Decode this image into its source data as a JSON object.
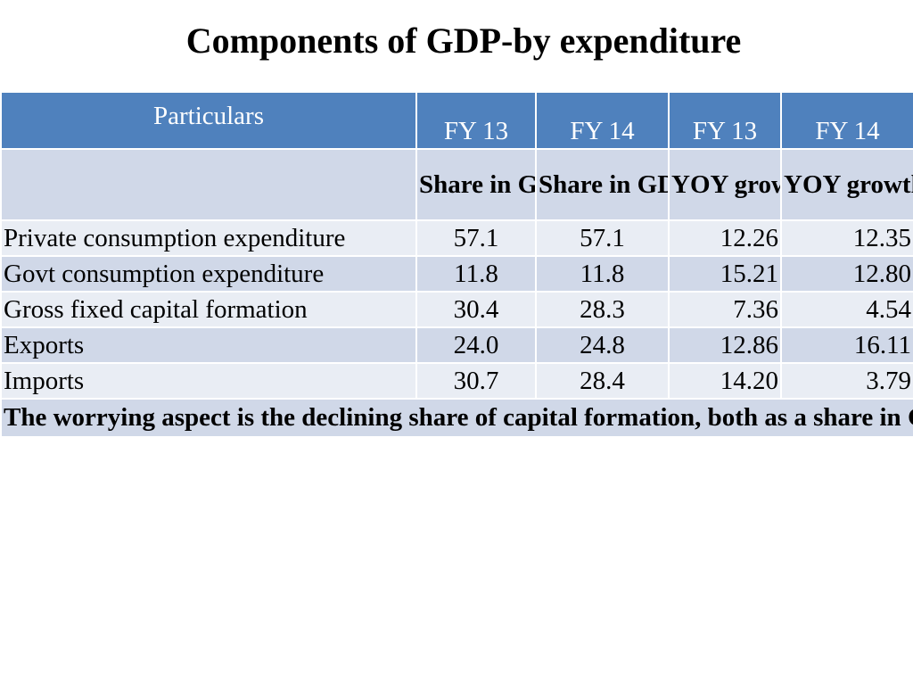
{
  "title": "Components of GDP-by expenditure",
  "table": {
    "header_row1": [
      "Particulars",
      "FY 13",
      "FY 14",
      "FY 13",
      "FY 14"
    ],
    "header_row2": [
      "",
      "Share in GDP",
      "Share in GDP",
      "YOY growth",
      "YOY growth"
    ],
    "rows": [
      [
        "Private consumption expenditure",
        "57.1",
        "57.1",
        "12.26",
        "12.35"
      ],
      [
        "Govt consumption expenditure",
        "11.8",
        "11.8",
        "15.21",
        "12.80"
      ],
      [
        "Gross fixed capital formation",
        "30.4",
        "28.3",
        "7.36",
        "4.54"
      ],
      [
        "Exports",
        "24.0",
        "24.8",
        "12.86",
        "16.11"
      ],
      [
        "Imports",
        "30.7",
        "28.4",
        "14.20",
        "3.79"
      ]
    ],
    "note": "The worrying aspect is the declining share of capital formation, both as a share in GDP and in growth terms. Govt expenditure alos declined, which is a reason for slow GDP growth. This also proves that fiscal deficit was managed by expenditure compression rather than revenue maximization. Low capital formation ot GDP shows policy paralysis"
  },
  "colors": {
    "header_bg": "#4f81bd",
    "band_dark": "#d0d8e8",
    "band_light": "#e9edf4"
  }
}
